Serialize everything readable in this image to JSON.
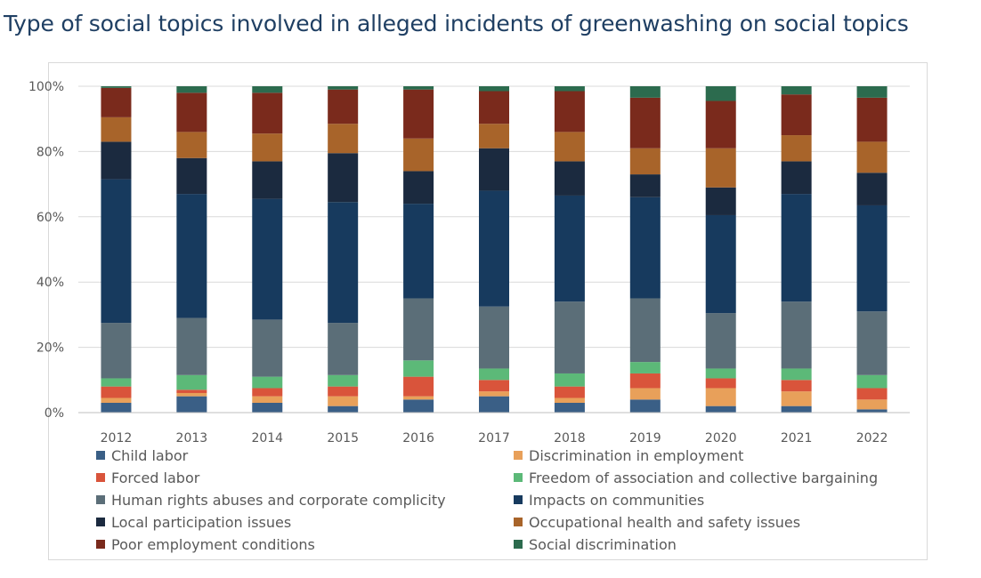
{
  "title": "Type of social topics involved in alleged incidents of greenwashing on social topics",
  "chart_data": {
    "type": "bar",
    "stacked": "percent",
    "title": "Type of social topics involved in alleged incidents of greenwashing on social topics",
    "categories": [
      "2012",
      "2013",
      "2014",
      "2015",
      "2016",
      "2017",
      "2018",
      "2019",
      "2020",
      "2021",
      "2022"
    ],
    "ylim": [
      0,
      100
    ],
    "yticks": [
      "0%",
      "20%",
      "40%",
      "60%",
      "80%",
      "100%"
    ],
    "grid": true,
    "legend_position": "bottom",
    "series": [
      {
        "name": "Child labor",
        "color": "#3a5f86",
        "values": [
          3,
          5,
          3,
          2,
          4,
          5,
          3,
          4,
          2,
          2,
          1
        ]
      },
      {
        "name": "Discrimination in employment",
        "color": "#e8a05a",
        "values": [
          1.5,
          1,
          2,
          3,
          1,
          1.5,
          1.5,
          3.5,
          5.5,
          4.5,
          3
        ]
      },
      {
        "name": "Forced labor",
        "color": "#d9543b",
        "values": [
          3.5,
          1,
          2.5,
          3,
          6,
          3.5,
          3.5,
          4.5,
          3,
          3.5,
          3.5
        ]
      },
      {
        "name": "Freedom of association and collective bargaining",
        "color": "#5cb978",
        "values": [
          2.5,
          4.5,
          3.5,
          3.5,
          5,
          3.5,
          4,
          3.5,
          3,
          3.5,
          4
        ]
      },
      {
        "name": "Human rights abuses and corporate complicity",
        "color": "#5b6e78",
        "values": [
          17,
          17.5,
          17.5,
          16,
          19,
          19,
          22,
          19.5,
          17,
          20.5,
          19.5
        ]
      },
      {
        "name": "Impacts on communities",
        "color": "#173a5e",
        "values": [
          44,
          38,
          37,
          37,
          29,
          35.5,
          32.5,
          31,
          30,
          33,
          32.5
        ]
      },
      {
        "name": "Local participation issues",
        "color": "#1b2a3f",
        "values": [
          11.5,
          11,
          11.5,
          15,
          10,
          13,
          10.5,
          7,
          8.5,
          10,
          10
        ]
      },
      {
        "name": "Occupational health and safety issues",
        "color": "#a8642a",
        "values": [
          7.5,
          8,
          8.5,
          9,
          10,
          7.5,
          9,
          8,
          12,
          8,
          9.5
        ]
      },
      {
        "name": "Poor employment conditions",
        "color": "#7a2a1c",
        "values": [
          9,
          12,
          12.5,
          10.5,
          15,
          10,
          12.5,
          15.5,
          14.5,
          12.5,
          13.5
        ]
      },
      {
        "name": "Social discrimination",
        "color": "#2c6b4e",
        "values": [
          0.5,
          2,
          2,
          1,
          1,
          1.5,
          1.5,
          3.5,
          4.5,
          2.5,
          3.5
        ]
      }
    ]
  }
}
